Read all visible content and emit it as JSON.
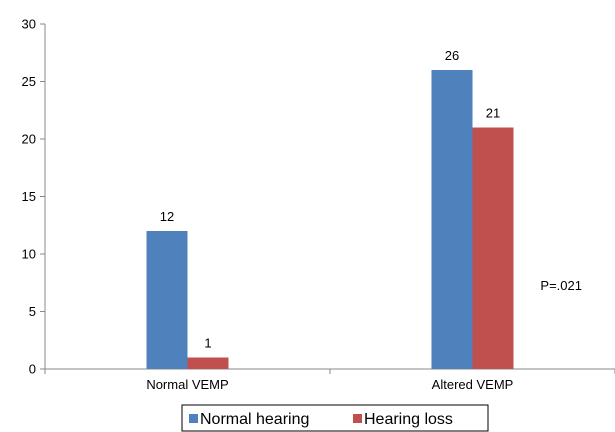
{
  "chart_data": {
    "type": "bar",
    "categories": [
      "Normal VEMP",
      "Altered VEMP"
    ],
    "series": [
      {
        "name": "Normal hearing",
        "values": [
          12,
          26
        ],
        "color": "#4F81BD"
      },
      {
        "name": "Hearing loss",
        "values": [
          1,
          21
        ],
        "color": "#C0504D"
      }
    ],
    "ylim": [
      0,
      30
    ],
    "yticks": [
      0,
      5,
      10,
      15,
      20,
      25,
      30
    ],
    "annotation": "P=.021",
    "legend_position": "bottom",
    "grid": false
  }
}
